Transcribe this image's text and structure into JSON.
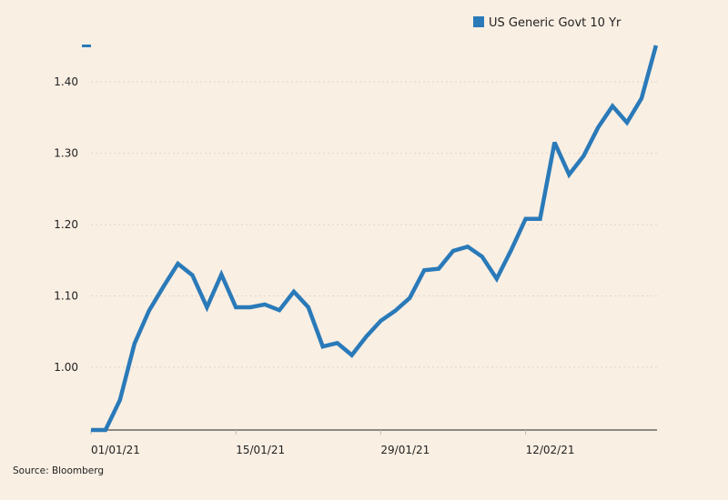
{
  "chart_data": {
    "type": "line",
    "title": "",
    "xlabel": "",
    "ylabel": "",
    "source": "Source: Bloomberg",
    "legend": {
      "placement": "top-right"
    },
    "grid": true,
    "ylim": [
      0.912,
      1.451
    ],
    "yticks": [
      "1.00",
      "1.10",
      "1.20",
      "1.30",
      "1.40"
    ],
    "ytick_values": [
      1.0,
      1.1,
      1.2,
      1.3,
      1.4
    ],
    "xticks": [
      "01/01/21",
      "15/01/21",
      "29/01/21",
      "12/02/21"
    ],
    "xtick_index": [
      0,
      10,
      20,
      30
    ],
    "x": [
      "01/01/21",
      "04/01/21",
      "05/01/21",
      "06/01/21",
      "07/01/21",
      "08/01/21",
      "11/01/21",
      "12/01/21",
      "13/01/21",
      "14/01/21",
      "15/01/21",
      "18/01/21",
      "19/01/21",
      "20/01/21",
      "21/01/21",
      "22/01/21",
      "25/01/21",
      "26/01/21",
      "27/01/21",
      "28/01/21",
      "29/01/21",
      "01/02/21",
      "02/02/21",
      "03/02/21",
      "04/02/21",
      "05/02/21",
      "08/02/21",
      "09/02/21",
      "10/02/21",
      "11/02/21",
      "12/02/21",
      "15/02/21",
      "16/02/21",
      "17/02/21",
      "18/02/21",
      "19/02/21",
      "22/02/21",
      "23/02/21",
      "24/02/21",
      "25/02/21"
    ],
    "series": [
      {
        "name": "US Generic Govt 10 Yr",
        "color": "#2a7ab9",
        "values": [
          0.912,
          0.912,
          0.954,
          1.033,
          1.079,
          1.113,
          1.145,
          1.129,
          1.084,
          1.13,
          1.084,
          1.084,
          1.088,
          1.08,
          1.106,
          1.084,
          1.029,
          1.034,
          1.017,
          1.043,
          1.065,
          1.079,
          1.097,
          1.136,
          1.138,
          1.163,
          1.169,
          1.155,
          1.124,
          1.164,
          1.208,
          1.208,
          1.315,
          1.27,
          1.296,
          1.336,
          1.366,
          1.343,
          1.377,
          1.451
        ]
      }
    ]
  }
}
